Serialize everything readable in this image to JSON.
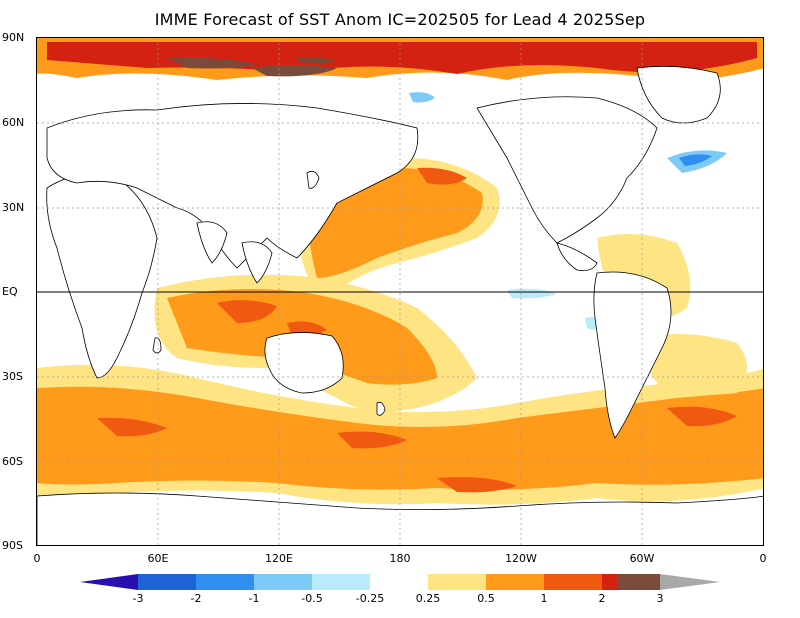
{
  "title": "IMME Forecast of SST Anom IC=202505 for Lead 4 2025Sep",
  "lat_labels": [
    "90N",
    "60N",
    "30N",
    "EQ",
    "30S",
    "60S",
    "90S"
  ],
  "lon_labels": [
    "0",
    "60E",
    "120E",
    "180",
    "120W",
    "60W",
    "0"
  ],
  "legend": {
    "levels": [
      "-3",
      "-2",
      "-1",
      "-0.5",
      "-0.25",
      "0.25",
      "0.5",
      "1",
      "2",
      "3"
    ],
    "colors": {
      "below_-3": "#2a0fb0",
      "-3_-2": "#1e63d6",
      "-2_-1": "#2f8ef0",
      "-1_-0.5": "#7ccaf5",
      "-0.5_-0.25": "#b8ecfb",
      "-0.25_0.25": "#ffffff",
      "0.25_0.5": "#ffe484",
      "0.5_1": "#ff9a1a",
      "1_2": "#f05a10",
      "2_3": "#d42212",
      "3_plus": "#7a4a3a",
      "above": "#a8a8a8"
    }
  },
  "map_features": {
    "equator_line": true,
    "gridlines": "dotted",
    "coastlines": "black"
  }
}
